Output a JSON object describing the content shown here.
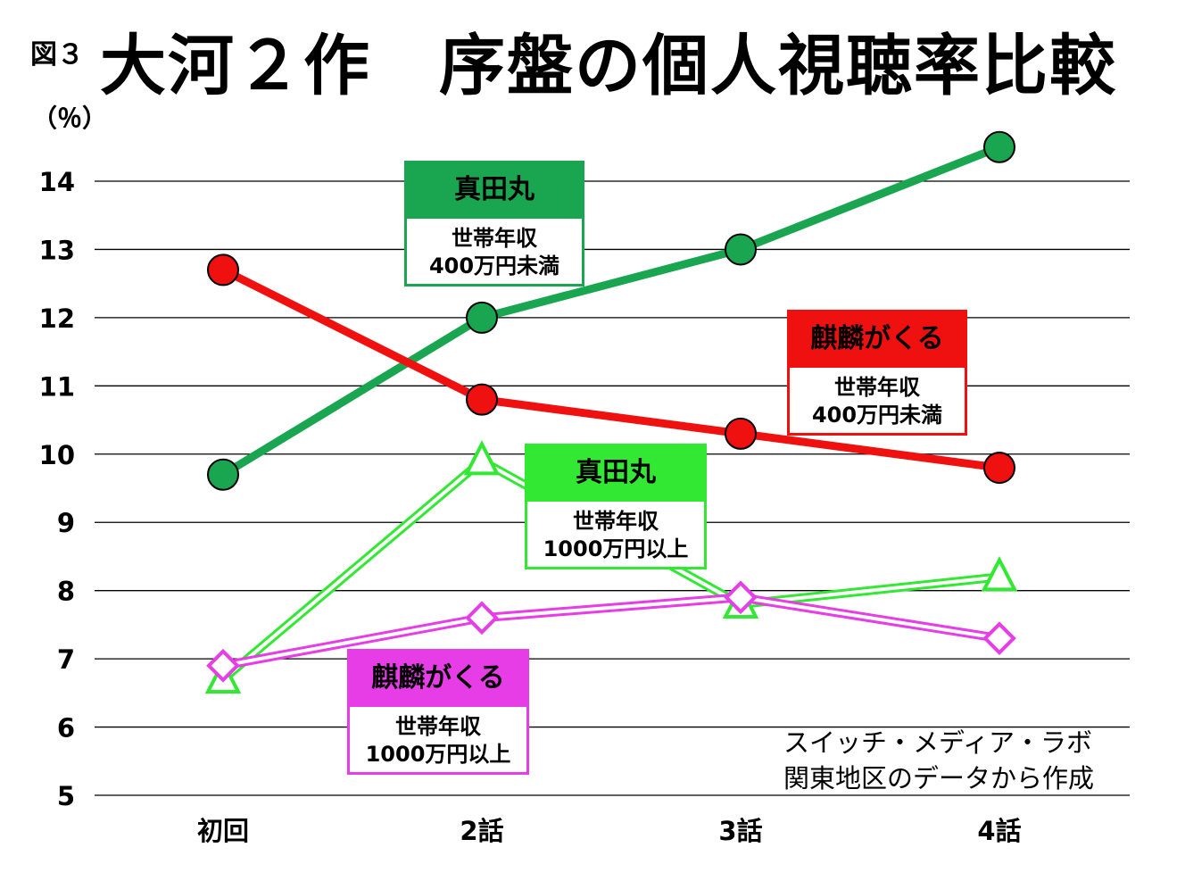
{
  "figure_label": "図３",
  "title": "大河２作　序盤の個人視聴率比較",
  "source_lines": [
    "スイッチ・メディア・ラボ",
    "関東地区のデータから作成"
  ],
  "chart_data": {
    "type": "line",
    "title": "大河２作　序盤の個人視聴率比較",
    "ylabel": "（％）",
    "xlabel": "",
    "categories": [
      "初回",
      "2話",
      "3話",
      "4話"
    ],
    "ylim": [
      5,
      14
    ],
    "yticks": [
      5,
      6,
      7,
      8,
      9,
      10,
      11,
      12,
      13,
      14
    ],
    "grid": true,
    "series": [
      {
        "key": "sanada_low",
        "color": "#1aa551",
        "marker": "circle",
        "style": "solid",
        "values": [
          9.7,
          12.0,
          13.0,
          14.5
        ]
      },
      {
        "key": "kirin_low",
        "color": "#ef1010",
        "marker": "circle",
        "style": "solid",
        "values": [
          12.7,
          10.8,
          10.3,
          9.8
        ]
      },
      {
        "key": "sanada_high",
        "color": "#33e833",
        "marker": "triangle",
        "style": "double",
        "values": [
          6.7,
          9.9,
          7.8,
          8.2
        ]
      },
      {
        "key": "kirin_high",
        "color": "#e63de6",
        "marker": "diamond",
        "style": "double",
        "values": [
          6.9,
          7.6,
          7.9,
          7.3
        ]
      }
    ],
    "labels": [
      {
        "series": "sanada_low",
        "color": "#1aa551",
        "name": "真田丸",
        "line1": "世帯年収",
        "line2": "400万円未満"
      },
      {
        "series": "kirin_low",
        "color": "#ef1010",
        "name": "麒麟がくる",
        "line1": "世帯年収",
        "line2": "400万円未満"
      },
      {
        "series": "sanada_high",
        "color": "#33e833",
        "name": "真田丸",
        "line1": "世帯年収",
        "line2": "1000万円以上"
      },
      {
        "series": "kirin_high",
        "color": "#e63de6",
        "name": "麒麟がくる",
        "line1": "世帯年収",
        "line2": "1000万円以上"
      }
    ]
  }
}
